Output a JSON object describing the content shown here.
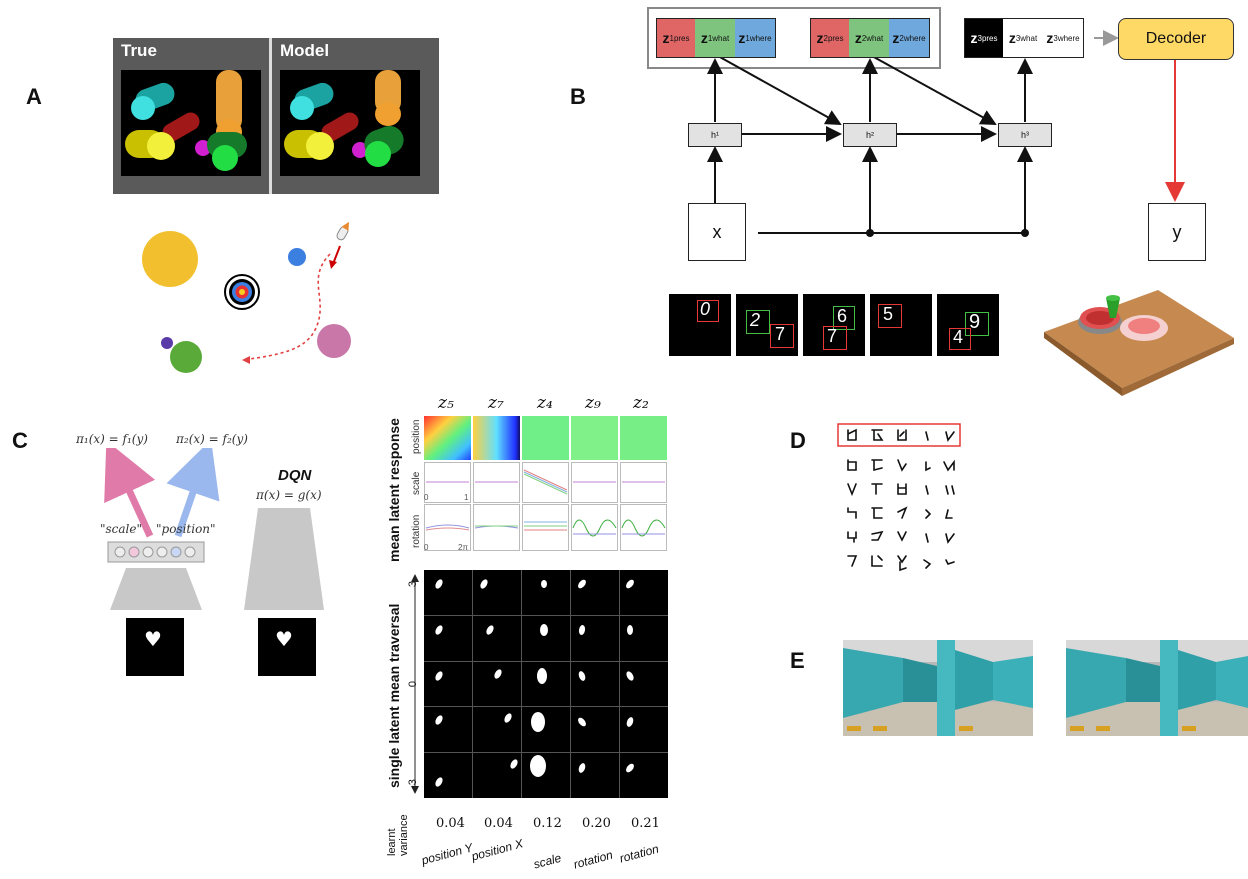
{
  "panels": {
    "a": {
      "letter": "A",
      "true_label": "True",
      "model_label": "Model"
    },
    "b": {
      "letter": "B",
      "z_groups": [
        {
          "pres": "z",
          "pres_sup": "1",
          "pres_sub": "pres",
          "what_sup": "1",
          "what_sub": "what",
          "where_sup": "1",
          "where_sub": "where"
        },
        {
          "pres": "z",
          "pres_sup": "2",
          "pres_sub": "pres",
          "what_sup": "2",
          "what_sub": "what",
          "where_sup": "2",
          "where_sub": "where"
        },
        {
          "pres": "z",
          "pres_sup": "3",
          "pres_sub": "pres",
          "what_sup": "3",
          "what_sub": "what",
          "where_sup": "3",
          "where_sub": "where"
        }
      ],
      "h_labels": [
        "h¹",
        "h²",
        "h³"
      ],
      "decoder": "Decoder",
      "x_label": "x",
      "y_label": "y",
      "digits": [
        "0",
        "2",
        "7",
        "6",
        "7",
        "5",
        "9",
        "4"
      ]
    },
    "c": {
      "letter": "C",
      "pi1": "π₁(x) = f₁(y)",
      "pi2": "π₂(x) = f₂(y)",
      "scale_word": "\"scale\"",
      "position_word": "\"position\"",
      "dqn": "DQN",
      "dqn_eq": "π(x) = g(x)",
      "latents": [
        "z₅",
        "z₇",
        "z₄",
        "z₉",
        "z₂"
      ],
      "mean_latent_response": "mean latent response",
      "row_position": "position",
      "row_scale": "scale",
      "row_rotation": "rotation",
      "scale_tick_0": "0",
      "scale_tick_1": "1",
      "rot_tick_0": "0",
      "rot_tick_2pi": "2π",
      "traversal_label": "single latent mean traversal",
      "trav_ticks": [
        "3",
        "0",
        "-3"
      ],
      "learnt_variance": "learnt variance",
      "variances": [
        "0.04",
        "0.04",
        "0.12",
        "0.20",
        "0.21"
      ],
      "factor_names": [
        "position Y",
        "position X",
        "scale",
        "rotation",
        "rotation"
      ]
    },
    "d": {
      "letter": "D"
    },
    "e": {
      "letter": "E"
    }
  },
  "colors": {
    "pres": "#e06666",
    "what": "#7ec47e",
    "where": "#6fa8dc",
    "decoder": "#ffd966",
    "arrow_red": "#e53935",
    "gray_panel": "#555555"
  }
}
